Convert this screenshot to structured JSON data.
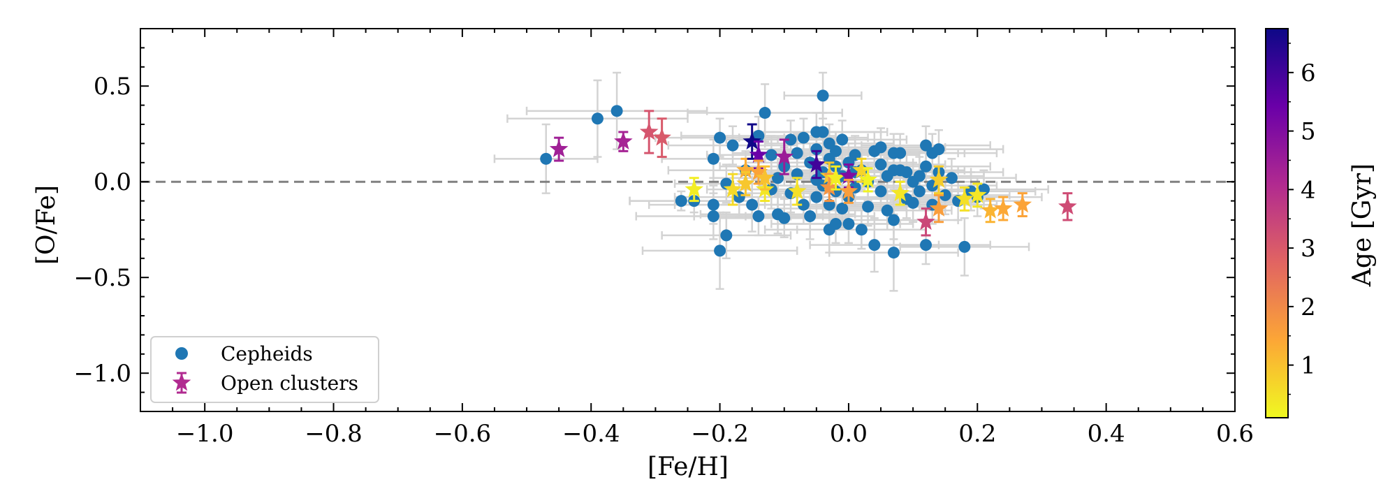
{
  "chart_data": {
    "type": "scatter",
    "title": "",
    "xlabel": "[Fe/H]",
    "ylabel": "[O/Fe]",
    "xlim": [
      -1.1,
      0.6
    ],
    "ylim": [
      -1.2,
      0.8
    ],
    "xticks": [
      -1.0,
      -0.8,
      -0.6,
      -0.4,
      -0.2,
      0.0,
      0.2,
      0.4,
      0.6
    ],
    "xtick_labels": [
      "−1.0",
      "−0.8",
      "−0.6",
      "−0.4",
      "−0.2",
      "0.0",
      "0.2",
      "0.4",
      "0.6"
    ],
    "yticks": [
      0.5,
      0.0,
      -0.5,
      -1.0
    ],
    "ytick_labels": [
      "0.5",
      "0.0",
      "−0.5",
      "−1.0"
    ],
    "reference_line_y": 0.0,
    "legend_position": "lower-left",
    "colorbar": {
      "label": "Age [Gyr]",
      "range": [
        0.1,
        6.75
      ],
      "ticks": [
        1,
        2,
        3,
        4,
        5,
        6
      ],
      "tick_labels": [
        "1",
        "2",
        "3",
        "4",
        "5",
        "6"
      ],
      "colormap": [
        "#f0f921",
        "#fca636",
        "#e16462",
        "#b12a90",
        "#6a00a8",
        "#0d0887"
      ]
    },
    "series": [
      {
        "name": "Cepheids",
        "marker": "circle",
        "color": "#1f77b4",
        "errorbar_color": "#d3d3d3",
        "points": [
          {
            "x": -0.47,
            "y": 0.12,
            "xerr": 0.08,
            "yerr": 0.18
          },
          {
            "x": -0.39,
            "y": 0.33,
            "xerr": 0.14,
            "yerr": 0.2
          },
          {
            "x": -0.36,
            "y": 0.37,
            "xerr": 0.14,
            "yerr": 0.2
          },
          {
            "x": -0.26,
            "y": -0.1,
            "xerr": 0.08,
            "yerr": 0.05
          },
          {
            "x": -0.24,
            "y": -0.1,
            "xerr": 0.1,
            "yerr": 0.06
          },
          {
            "x": -0.21,
            "y": 0.12,
            "xerr": 0.08,
            "yerr": 0.1
          },
          {
            "x": -0.21,
            "y": -0.12,
            "xerr": 0.1,
            "yerr": 0.1
          },
          {
            "x": -0.21,
            "y": -0.18,
            "xerr": 0.12,
            "yerr": 0.12
          },
          {
            "x": -0.2,
            "y": 0.23,
            "xerr": 0.1,
            "yerr": 0.1
          },
          {
            "x": -0.2,
            "y": -0.36,
            "xerr": 0.12,
            "yerr": 0.2
          },
          {
            "x": -0.19,
            "y": -0.28,
            "xerr": 0.1,
            "yerr": 0.12
          },
          {
            "x": -0.19,
            "y": -0.01,
            "xerr": 0.08,
            "yerr": 0.1
          },
          {
            "x": -0.18,
            "y": 0.19,
            "xerr": 0.1,
            "yerr": 0.1
          },
          {
            "x": -0.17,
            "y": -0.08,
            "xerr": 0.1,
            "yerr": 0.1
          },
          {
            "x": -0.16,
            "y": 0.06,
            "xerr": 0.12,
            "yerr": 0.1
          },
          {
            "x": -0.15,
            "y": -0.12,
            "xerr": 0.12,
            "yerr": 0.14
          },
          {
            "x": -0.14,
            "y": -0.18,
            "xerr": 0.1,
            "yerr": 0.1
          },
          {
            "x": -0.14,
            "y": 0.24,
            "xerr": 0.12,
            "yerr": 0.1
          },
          {
            "x": -0.13,
            "y": 0.36,
            "xerr": 0.12,
            "yerr": 0.15
          },
          {
            "x": -0.12,
            "y": 0.14,
            "xerr": 0.1,
            "yerr": 0.1
          },
          {
            "x": -0.12,
            "y": -0.04,
            "xerr": 0.1,
            "yerr": 0.1
          },
          {
            "x": -0.11,
            "y": 0.02,
            "xerr": 0.1,
            "yerr": 0.1
          },
          {
            "x": -0.11,
            "y": -0.17,
            "xerr": 0.12,
            "yerr": 0.1
          },
          {
            "x": -0.1,
            "y": -0.19,
            "xerr": 0.1,
            "yerr": 0.1
          },
          {
            "x": -0.1,
            "y": 0.08,
            "xerr": 0.1,
            "yerr": 0.1
          },
          {
            "x": -0.09,
            "y": 0.22,
            "xerr": 0.1,
            "yerr": 0.1
          },
          {
            "x": -0.09,
            "y": -0.06,
            "xerr": 0.1,
            "yerr": 0.1
          },
          {
            "x": -0.08,
            "y": 0.04,
            "xerr": 0.1,
            "yerr": 0.1
          },
          {
            "x": -0.08,
            "y": 0.15,
            "xerr": 0.1,
            "yerr": 0.1
          },
          {
            "x": -0.07,
            "y": -0.12,
            "xerr": 0.1,
            "yerr": 0.1
          },
          {
            "x": -0.07,
            "y": 0.23,
            "xerr": 0.1,
            "yerr": 0.1
          },
          {
            "x": -0.06,
            "y": 0.1,
            "xerr": 0.1,
            "yerr": 0.1
          },
          {
            "x": -0.06,
            "y": -0.18,
            "xerr": 0.1,
            "yerr": 0.12
          },
          {
            "x": -0.05,
            "y": 0.01,
            "xerr": 0.1,
            "yerr": 0.1
          },
          {
            "x": -0.05,
            "y": 0.26,
            "xerr": 0.1,
            "yerr": 0.1
          },
          {
            "x": -0.05,
            "y": 0.17,
            "xerr": 0.1,
            "yerr": 0.1
          },
          {
            "x": -0.05,
            "y": -0.08,
            "xerr": 0.1,
            "yerr": 0.1
          },
          {
            "x": -0.04,
            "y": 0.45,
            "xerr": 0.06,
            "yerr": 0.12
          },
          {
            "x": -0.04,
            "y": 0.05,
            "xerr": 0.1,
            "yerr": 0.1
          },
          {
            "x": -0.04,
            "y": 0.26,
            "xerr": 0.1,
            "yerr": 0.1
          },
          {
            "x": -0.04,
            "y": -0.02,
            "xerr": 0.1,
            "yerr": 0.1
          },
          {
            "x": -0.03,
            "y": 0.12,
            "xerr": 0.1,
            "yerr": 0.1
          },
          {
            "x": -0.03,
            "y": -0.12,
            "xerr": 0.1,
            "yerr": 0.1
          },
          {
            "x": -0.03,
            "y": 0.2,
            "xerr": 0.1,
            "yerr": 0.1
          },
          {
            "x": -0.03,
            "y": -0.25,
            "xerr": 0.1,
            "yerr": 0.12
          },
          {
            "x": -0.02,
            "y": 0.08,
            "xerr": 0.1,
            "yerr": 0.1
          },
          {
            "x": -0.02,
            "y": -0.05,
            "xerr": 0.1,
            "yerr": 0.1
          },
          {
            "x": -0.02,
            "y": -0.22,
            "xerr": 0.1,
            "yerr": 0.1
          },
          {
            "x": -0.02,
            "y": 0.16,
            "xerr": 0.1,
            "yerr": 0.1
          },
          {
            "x": -0.01,
            "y": 0.03,
            "xerr": 0.1,
            "yerr": 0.1
          },
          {
            "x": -0.01,
            "y": 0.22,
            "xerr": 0.1,
            "yerr": 0.1
          },
          {
            "x": -0.01,
            "y": -0.14,
            "xerr": 0.1,
            "yerr": 0.1
          },
          {
            "x": 0.0,
            "y": 0.1,
            "xerr": 0.1,
            "yerr": 0.1
          },
          {
            "x": 0.0,
            "y": -0.08,
            "xerr": 0.1,
            "yerr": 0.1
          },
          {
            "x": 0.0,
            "y": -0.22,
            "xerr": 0.1,
            "yerr": 0.1
          },
          {
            "x": 0.01,
            "y": 0.05,
            "xerr": 0.1,
            "yerr": 0.1
          },
          {
            "x": 0.01,
            "y": -0.03,
            "xerr": 0.1,
            "yerr": 0.1
          },
          {
            "x": 0.01,
            "y": 0.14,
            "xerr": 0.1,
            "yerr": 0.1
          },
          {
            "x": 0.02,
            "y": -0.25,
            "xerr": 0.1,
            "yerr": 0.1
          },
          {
            "x": 0.02,
            "y": 0.06,
            "xerr": 0.1,
            "yerr": 0.1
          },
          {
            "x": 0.03,
            "y": -0.13,
            "xerr": 0.1,
            "yerr": 0.1
          },
          {
            "x": 0.03,
            "y": 0.0,
            "xerr": 0.1,
            "yerr": 0.1
          },
          {
            "x": 0.04,
            "y": 0.16,
            "xerr": 0.1,
            "yerr": 0.1
          },
          {
            "x": 0.04,
            "y": -0.33,
            "xerr": 0.1,
            "yerr": 0.14
          },
          {
            "x": 0.05,
            "y": 0.09,
            "xerr": 0.1,
            "yerr": 0.1
          },
          {
            "x": 0.05,
            "y": 0.18,
            "xerr": 0.1,
            "yerr": 0.1
          },
          {
            "x": 0.05,
            "y": -0.05,
            "xerr": 0.1,
            "yerr": 0.1
          },
          {
            "x": 0.06,
            "y": 0.03,
            "xerr": 0.1,
            "yerr": 0.1
          },
          {
            "x": 0.06,
            "y": -0.15,
            "xerr": 0.1,
            "yerr": 0.1
          },
          {
            "x": 0.07,
            "y": 0.06,
            "xerr": 0.1,
            "yerr": 0.1
          },
          {
            "x": 0.07,
            "y": -0.37,
            "xerr": 0.1,
            "yerr": 0.2
          },
          {
            "x": 0.07,
            "y": 0.15,
            "xerr": 0.1,
            "yerr": 0.1
          },
          {
            "x": 0.07,
            "y": -0.2,
            "xerr": 0.1,
            "yerr": 0.1
          },
          {
            "x": 0.08,
            "y": 0.06,
            "xerr": 0.1,
            "yerr": 0.1
          },
          {
            "x": 0.08,
            "y": 0.15,
            "xerr": 0.1,
            "yerr": 0.1
          },
          {
            "x": 0.09,
            "y": -0.09,
            "xerr": 0.1,
            "yerr": 0.1
          },
          {
            "x": 0.09,
            "y": 0.05,
            "xerr": 0.1,
            "yerr": 0.1
          },
          {
            "x": 0.1,
            "y": 0.0,
            "xerr": 0.1,
            "yerr": 0.1
          },
          {
            "x": 0.1,
            "y": -0.11,
            "xerr": 0.1,
            "yerr": 0.1
          },
          {
            "x": 0.11,
            "y": 0.03,
            "xerr": 0.1,
            "yerr": 0.1
          },
          {
            "x": 0.11,
            "y": -0.05,
            "xerr": 0.1,
            "yerr": 0.1
          },
          {
            "x": 0.12,
            "y": 0.19,
            "xerr": 0.1,
            "yerr": 0.1
          },
          {
            "x": 0.12,
            "y": -0.33,
            "xerr": 0.1,
            "yerr": 0.1
          },
          {
            "x": 0.12,
            "y": 0.08,
            "xerr": 0.1,
            "yerr": 0.1
          },
          {
            "x": 0.13,
            "y": -0.02,
            "xerr": 0.1,
            "yerr": 0.1
          },
          {
            "x": 0.13,
            "y": 0.15,
            "xerr": 0.1,
            "yerr": 0.1
          },
          {
            "x": 0.13,
            "y": -0.12,
            "xerr": 0.1,
            "yerr": 0.1
          },
          {
            "x": 0.14,
            "y": 0.17,
            "xerr": 0.1,
            "yerr": 0.1
          },
          {
            "x": 0.14,
            "y": 0.05,
            "xerr": 0.1,
            "yerr": 0.1
          },
          {
            "x": 0.15,
            "y": -0.07,
            "xerr": 0.1,
            "yerr": 0.1
          },
          {
            "x": 0.16,
            "y": 0.02,
            "xerr": 0.1,
            "yerr": 0.1
          },
          {
            "x": 0.17,
            "y": -0.1,
            "xerr": 0.1,
            "yerr": 0.1
          },
          {
            "x": 0.18,
            "y": -0.34,
            "xerr": 0.1,
            "yerr": 0.15
          },
          {
            "x": 0.19,
            "y": -0.05,
            "xerr": 0.1,
            "yerr": 0.1
          },
          {
            "x": 0.2,
            "y": -0.08,
            "xerr": 0.1,
            "yerr": 0.1
          },
          {
            "x": 0.21,
            "y": -0.04,
            "xerr": 0.1,
            "yerr": 0.1
          }
        ]
      },
      {
        "name": "Open clusters",
        "marker": "star",
        "color_by": "age",
        "points": [
          {
            "x": -0.45,
            "y": 0.17,
            "yerr": 0.06,
            "age": 4.4
          },
          {
            "x": -0.35,
            "y": 0.21,
            "yerr": 0.05,
            "age": 4.3
          },
          {
            "x": -0.31,
            "y": 0.26,
            "yerr": 0.11,
            "age": 3.1
          },
          {
            "x": -0.29,
            "y": 0.23,
            "yerr": 0.1,
            "age": 3.0
          },
          {
            "x": -0.24,
            "y": -0.04,
            "yerr": 0.06,
            "age": 0.3
          },
          {
            "x": -0.18,
            "y": -0.04,
            "yerr": 0.08,
            "age": 0.6
          },
          {
            "x": -0.16,
            "y": 0.06,
            "yerr": 0.06,
            "age": 1.3
          },
          {
            "x": -0.16,
            "y": -0.01,
            "yerr": 0.06,
            "age": 0.9
          },
          {
            "x": -0.15,
            "y": 0.21,
            "yerr": 0.09,
            "age": 6.7
          },
          {
            "x": -0.14,
            "y": 0.14,
            "yerr": 0.07,
            "age": 5.4
          },
          {
            "x": -0.14,
            "y": 0.05,
            "yerr": 0.06,
            "age": 1.5
          },
          {
            "x": -0.13,
            "y": -0.04,
            "yerr": 0.06,
            "age": 0.4
          },
          {
            "x": -0.13,
            "y": 0.02,
            "yerr": 0.06,
            "age": 1.0
          },
          {
            "x": -0.1,
            "y": 0.13,
            "yerr": 0.09,
            "age": 4.5
          },
          {
            "x": -0.08,
            "y": -0.05,
            "yerr": 0.07,
            "age": 0.5
          },
          {
            "x": -0.05,
            "y": 0.09,
            "yerr": 0.07,
            "age": 6.0
          },
          {
            "x": -0.03,
            "y": 0.03,
            "yerr": 0.07,
            "age": 0.9
          },
          {
            "x": -0.03,
            "y": -0.03,
            "yerr": 0.07,
            "age": 1.8
          },
          {
            "x": -0.02,
            "y": 0.02,
            "yerr": 0.06,
            "age": 0.3
          },
          {
            "x": 0.0,
            "y": 0.03,
            "yerr": 0.06,
            "age": 5.0
          },
          {
            "x": 0.0,
            "y": -0.05,
            "yerr": 0.06,
            "age": 1.6
          },
          {
            "x": 0.02,
            "y": 0.06,
            "yerr": 0.06,
            "age": 0.7
          },
          {
            "x": 0.03,
            "y": 0.01,
            "yerr": 0.06,
            "age": 0.2
          },
          {
            "x": 0.08,
            "y": -0.06,
            "yerr": 0.06,
            "age": 0.4
          },
          {
            "x": 0.12,
            "y": -0.21,
            "yerr": 0.07,
            "age": 3.4
          },
          {
            "x": 0.14,
            "y": -0.14,
            "yerr": 0.07,
            "age": 1.6
          },
          {
            "x": 0.14,
            "y": 0.01,
            "yerr": 0.07,
            "age": 0.8
          },
          {
            "x": 0.18,
            "y": -0.09,
            "yerr": 0.06,
            "age": 0.5
          },
          {
            "x": 0.2,
            "y": -0.07,
            "yerr": 0.06,
            "age": 0.4
          },
          {
            "x": 0.22,
            "y": -0.15,
            "yerr": 0.06,
            "age": 1.2
          },
          {
            "x": 0.24,
            "y": -0.14,
            "yerr": 0.06,
            "age": 1.4
          },
          {
            "x": 0.27,
            "y": -0.12,
            "yerr": 0.06,
            "age": 1.5
          },
          {
            "x": 0.34,
            "y": -0.13,
            "yerr": 0.07,
            "age": 3.3
          }
        ]
      }
    ]
  }
}
